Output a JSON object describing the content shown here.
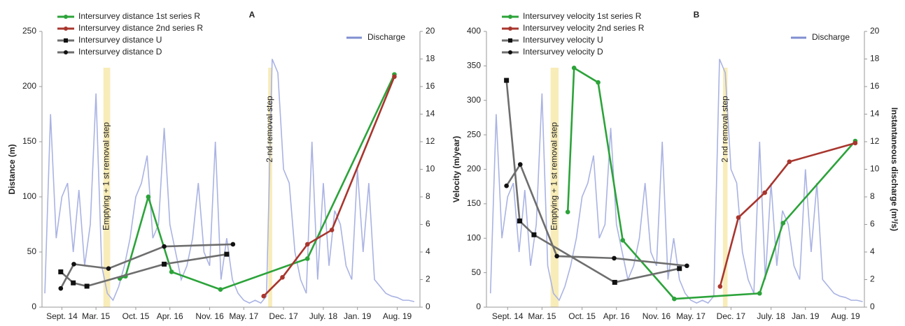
{
  "chart_data": [
    {
      "type": "line",
      "title": "A",
      "ylabel": "Distance (m)",
      "legend": "upper left",
      "xlim": [
        -3.5,
        63
      ],
      "ylim": [
        0,
        250
      ],
      "yticks": [
        0,
        50,
        100,
        150,
        200,
        250
      ],
      "y2lim": [
        0,
        20
      ],
      "y2ticks": [
        0,
        2,
        4,
        6,
        8,
        10,
        12,
        14,
        16,
        18,
        20
      ],
      "xticks": [
        {
          "value": 0,
          "label": "Sept. 14"
        },
        {
          "value": 6,
          "label": "Mar. 15"
        },
        {
          "value": 13,
          "label": "Oct. 15"
        },
        {
          "value": 19,
          "label": "Apr. 16"
        },
        {
          "value": 26,
          "label": "Nov. 16"
        },
        {
          "value": 32,
          "label": "May. 17"
        },
        {
          "value": 39,
          "label": "Dec. 17"
        },
        {
          "value": 46,
          "label": "July. 18"
        },
        {
          "value": 52,
          "label": "Jan. 19"
        },
        {
          "value": 59,
          "label": "Aug. 19"
        }
      ],
      "bands": [
        {
          "label": "Emptying + 1 st removal step",
          "x": [
            7.3,
            8.5
          ]
        },
        {
          "label": "2 nd removal step",
          "x": [
            36.3,
            37.0
          ]
        }
      ],
      "series": [
        {
          "name": "Intersurvey distance 1st series R",
          "color": "#2ca33a",
          "marker": "circle",
          "x": [
            10.2,
            11.2,
            15.2,
            19.3,
            27.9,
            43.2,
            58.5
          ],
          "values": [
            26,
            28,
            100,
            32,
            16,
            44,
            211
          ]
        },
        {
          "name": "Intersurvey distance 2nd series R",
          "color": "#a8362e",
          "marker": "circle",
          "x": [
            35.5,
            38.8,
            43.2,
            47.5,
            58.5
          ],
          "values": [
            10,
            27,
            57,
            70,
            209
          ]
        },
        {
          "name": "Intersurvey distance U",
          "color": "#6e6e6e",
          "marker": "square",
          "x": [
            -0.2,
            2,
            4.4,
            18,
            29
          ],
          "values": [
            32,
            22,
            19,
            39,
            48
          ]
        },
        {
          "name": "Intersurvey distance D",
          "color": "#6e6e6e",
          "marker": "dot",
          "x": [
            -0.2,
            2.1,
            8.2,
            18,
            30.1
          ],
          "values": [
            17,
            39,
            35,
            55,
            57
          ]
        },
        {
          "name": "Discharge",
          "color": "#aab3e3",
          "axis": "y2",
          "x": [
            -3,
            -2,
            -1,
            0,
            1,
            2,
            3,
            4,
            5,
            6,
            7,
            8,
            9,
            10,
            11,
            12,
            13,
            14,
            15,
            16,
            17,
            18,
            19,
            20,
            21,
            22,
            23,
            24,
            25,
            26,
            27,
            28,
            29,
            30,
            31,
            32,
            33,
            34,
            35,
            36,
            37,
            38,
            39,
            40,
            41,
            42,
            43,
            44,
            45,
            46,
            47,
            48,
            49,
            50,
            51,
            52,
            53,
            54,
            55,
            56,
            57,
            58,
            59,
            60,
            61,
            62
          ],
          "values": [
            1,
            14,
            5,
            8,
            9,
            4,
            8.5,
            3,
            6,
            15.5,
            3,
            1,
            0.5,
            1.5,
            3,
            5,
            8,
            9,
            11,
            5,
            6,
            13,
            6,
            4,
            2,
            3,
            5,
            9,
            4,
            3,
            12,
            2,
            5,
            2,
            1,
            0.5,
            0.3,
            0.5,
            0.3,
            0.8,
            18,
            17,
            10,
            9,
            4,
            2,
            1,
            12,
            2,
            9,
            3,
            7,
            6,
            3,
            2,
            10,
            4,
            9,
            2,
            1.5,
            1,
            0.8,
            0.7,
            0.5,
            0.5,
            0.4
          ]
        }
      ]
    },
    {
      "type": "line",
      "title": "B",
      "ylabel": "Velocity (m/year)",
      "y2label": "Instantaneous discharge (m³/s)",
      "legend": "upper left",
      "xlim": [
        -3.7,
        62.3
      ],
      "ylim": [
        0,
        400
      ],
      "yticks": [
        0,
        50,
        100,
        150,
        200,
        250,
        300,
        350,
        400
      ],
      "y2lim": [
        0,
        20
      ],
      "y2ticks": [
        0,
        2,
        4,
        6,
        8,
        10,
        12,
        14,
        16,
        18,
        20
      ],
      "xticks": [
        {
          "value": 0,
          "label": "Sept. 14"
        },
        {
          "value": 6,
          "label": "Mar. 15"
        },
        {
          "value": 13,
          "label": "Oct. 15"
        },
        {
          "value": 19,
          "label": "Apr. 16"
        },
        {
          "value": 26,
          "label": "Nov. 16"
        },
        {
          "value": 32,
          "label": "May. 17"
        },
        {
          "value": 39,
          "label": "Dec. 17"
        },
        {
          "value": 46,
          "label": "July. 18"
        },
        {
          "value": 52,
          "label": "Jan. 19"
        },
        {
          "value": 59,
          "label": "Aug. 19"
        }
      ],
      "bands": [
        {
          "label": "Emptying + 1 st removal step",
          "x": [
            7.5,
            8.9
          ]
        },
        {
          "label": "2 nd removal step",
          "x": [
            37.6,
            38.4
          ]
        }
      ],
      "series": [
        {
          "name": "Intersurvey velocity 1st series R",
          "color": "#2ca33a",
          "marker": "circle",
          "x": [
            10.5,
            11.6,
            15.8,
            20.1,
            29.1,
            44,
            48.1,
            60.7
          ],
          "values": [
            138,
            347,
            326,
            97,
            12,
            20,
            122,
            241
          ]
        },
        {
          "name": "Intersurvey velocity 2nd series R",
          "color": "#a8362e",
          "marker": "circle",
          "x": [
            37.1,
            40.3,
            44.9,
            49.2,
            60.7
          ],
          "values": [
            30,
            130,
            166,
            211,
            238
          ]
        },
        {
          "name": "Intersurvey velocity U",
          "color": "#6e6e6e",
          "marker": "square",
          "x": [
            -0.2,
            2.1,
            4.6,
            18.7,
            30
          ],
          "values": [
            329,
            125,
            105,
            36,
            56
          ]
        },
        {
          "name": "Intersurvey velocity D",
          "color": "#6e6e6e",
          "marker": "dot",
          "x": [
            -0.2,
            2.2,
            8.6,
            18.6,
            31.3
          ],
          "values": [
            176,
            207,
            74,
            71,
            60
          ]
        },
        {
          "name": "Discharge",
          "color": "#aab3e3",
          "axis": "y2",
          "x": [
            -3,
            -2,
            -1,
            0,
            1,
            2,
            3,
            4,
            5,
            6,
            7,
            8,
            9,
            10,
            11,
            12,
            13,
            14,
            15,
            16,
            17,
            18,
            19,
            20,
            21,
            22,
            23,
            24,
            25,
            26,
            27,
            28,
            29,
            30,
            31,
            32,
            33,
            34,
            35,
            36,
            37,
            38,
            39,
            40,
            41,
            42,
            43,
            44,
            45,
            46,
            47,
            48,
            49,
            50,
            51,
            52,
            53,
            54,
            55,
            56,
            57,
            58,
            59,
            60,
            61,
            62
          ],
          "values": [
            1,
            14,
            5,
            8,
            9,
            4,
            8.5,
            3,
            6,
            15.5,
            3,
            1,
            0.5,
            1.5,
            3,
            5,
            8,
            9,
            11,
            5,
            6,
            13,
            6,
            4,
            2,
            3,
            5,
            9,
            4,
            3,
            12,
            2,
            5,
            2,
            1,
            0.5,
            0.3,
            0.5,
            0.3,
            0.8,
            18,
            17,
            10,
            9,
            4,
            2,
            1,
            12,
            2,
            9,
            3,
            7,
            6,
            3,
            2,
            10,
            4,
            9,
            2,
            1.5,
            1,
            0.8,
            0.7,
            0.5,
            0.5,
            0.4
          ]
        }
      ]
    }
  ]
}
